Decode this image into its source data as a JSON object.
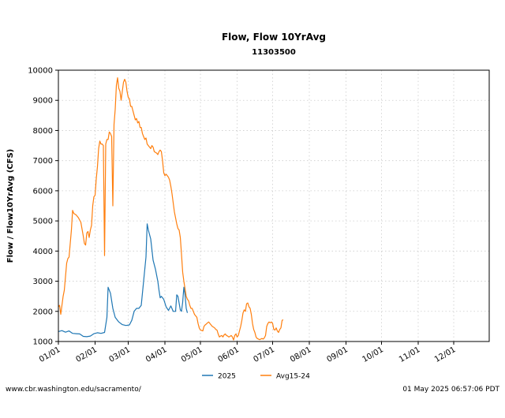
{
  "chart_data": {
    "type": "line",
    "title": "Flow, Flow 10YrAvg",
    "subtitle": "11303500",
    "ylabel": "Flow / Flow10YrAvg (CFS)",
    "xlabel": "",
    "ylim": [
      1000,
      10000
    ],
    "xlim": [
      "01/01",
      "12/31"
    ],
    "yticks": [
      1000,
      2000,
      3000,
      4000,
      5000,
      6000,
      7000,
      8000,
      9000,
      10000
    ],
    "xticks": [
      {
        "label": "01/01",
        "day": 1
      },
      {
        "label": "02/01",
        "day": 32
      },
      {
        "label": "03/01",
        "day": 60
      },
      {
        "label": "04/01",
        "day": 91
      },
      {
        "label": "05/01",
        "day": 121
      },
      {
        "label": "06/01",
        "day": 152
      },
      {
        "label": "07/01",
        "day": 182
      },
      {
        "label": "08/01",
        "day": 213
      },
      {
        "label": "09/01",
        "day": 244
      },
      {
        "label": "10/01",
        "day": 274
      },
      {
        "label": "11/01",
        "day": 305
      },
      {
        "label": "12/01",
        "day": 335
      }
    ],
    "grid": true,
    "legend_position": "bottom",
    "series": [
      {
        "name": "2025",
        "color": "#1f77b4",
        "points": [
          [
            1,
            1330
          ],
          [
            4,
            1360
          ],
          [
            7,
            1310
          ],
          [
            10,
            1350
          ],
          [
            13,
            1270
          ],
          [
            16,
            1260
          ],
          [
            19,
            1250
          ],
          [
            22,
            1170
          ],
          [
            25,
            1160
          ],
          [
            28,
            1180
          ],
          [
            31,
            1260
          ],
          [
            34,
            1290
          ],
          [
            37,
            1270
          ],
          [
            40,
            1300
          ],
          [
            42,
            1800
          ],
          [
            43,
            2800
          ],
          [
            45,
            2600
          ],
          [
            47,
            2100
          ],
          [
            49,
            1800
          ],
          [
            52,
            1650
          ],
          [
            55,
            1560
          ],
          [
            58,
            1530
          ],
          [
            61,
            1550
          ],
          [
            63,
            1700
          ],
          [
            65,
            2000
          ],
          [
            67,
            2100
          ],
          [
            69,
            2100
          ],
          [
            71,
            2200
          ],
          [
            73,
            3000
          ],
          [
            75,
            3800
          ],
          [
            76,
            4900
          ],
          [
            77,
            4700
          ],
          [
            79,
            4400
          ],
          [
            81,
            3700
          ],
          [
            83,
            3400
          ],
          [
            85,
            3000
          ],
          [
            86,
            2700
          ],
          [
            87,
            2450
          ],
          [
            88,
            2500
          ],
          [
            90,
            2400
          ],
          [
            92,
            2150
          ],
          [
            94,
            2030
          ],
          [
            96,
            2180
          ],
          [
            98,
            2000
          ],
          [
            100,
            2000
          ],
          [
            101,
            2550
          ],
          [
            102,
            2500
          ],
          [
            104,
            2050
          ],
          [
            105,
            2000
          ],
          [
            106,
            2300
          ],
          [
            107,
            2800
          ],
          [
            108,
            2550
          ],
          [
            109,
            2100
          ],
          [
            110,
            1950
          ]
        ]
      },
      {
        "name": "Avg15-24",
        "color": "#ff7f0e",
        "points": [
          [
            1,
            2150
          ],
          [
            2,
            2200
          ],
          [
            3,
            1900
          ],
          [
            5,
            2500
          ],
          [
            6,
            2700
          ],
          [
            8,
            3600
          ],
          [
            9,
            3750
          ],
          [
            10,
            3800
          ],
          [
            12,
            4700
          ],
          [
            13,
            5350
          ],
          [
            14,
            5250
          ],
          [
            16,
            5200
          ],
          [
            18,
            5100
          ],
          [
            20,
            4950
          ],
          [
            22,
            4500
          ],
          [
            23,
            4250
          ],
          [
            24,
            4200
          ],
          [
            25,
            4600
          ],
          [
            26,
            4650
          ],
          [
            27,
            4450
          ],
          [
            28,
            4700
          ],
          [
            29,
            4850
          ],
          [
            30,
            5500
          ],
          [
            31,
            5800
          ],
          [
            32,
            5850
          ],
          [
            33,
            6400
          ],
          [
            34,
            6800
          ],
          [
            35,
            7400
          ],
          [
            36,
            7650
          ],
          [
            37,
            7550
          ],
          [
            38,
            7550
          ],
          [
            39,
            7500
          ],
          [
            40,
            3850
          ],
          [
            41,
            7550
          ],
          [
            42,
            7700
          ],
          [
            43,
            7700
          ],
          [
            44,
            7950
          ],
          [
            45,
            7900
          ],
          [
            46,
            7800
          ],
          [
            47,
            5500
          ],
          [
            48,
            8200
          ],
          [
            49,
            8700
          ],
          [
            50,
            9500
          ],
          [
            51,
            9750
          ],
          [
            52,
            9400
          ],
          [
            53,
            9300
          ],
          [
            54,
            9000
          ],
          [
            55,
            9300
          ],
          [
            56,
            9600
          ],
          [
            57,
            9700
          ],
          [
            58,
            9600
          ],
          [
            59,
            9300
          ],
          [
            60,
            9100
          ],
          [
            61,
            9050
          ],
          [
            62,
            8800
          ],
          [
            63,
            8800
          ],
          [
            65,
            8500
          ],
          [
            66,
            8350
          ],
          [
            67,
            8400
          ],
          [
            68,
            8250
          ],
          [
            69,
            8300
          ],
          [
            70,
            8100
          ],
          [
            71,
            8100
          ],
          [
            72,
            7900
          ],
          [
            73,
            7800
          ],
          [
            74,
            7700
          ],
          [
            75,
            7750
          ],
          [
            76,
            7550
          ],
          [
            77,
            7500
          ],
          [
            78,
            7450
          ],
          [
            79,
            7400
          ],
          [
            80,
            7500
          ],
          [
            81,
            7450
          ],
          [
            82,
            7300
          ],
          [
            84,
            7250
          ],
          [
            85,
            7200
          ],
          [
            86,
            7300
          ],
          [
            87,
            7350
          ],
          [
            88,
            7300
          ],
          [
            89,
            7000
          ],
          [
            90,
            6600
          ],
          [
            91,
            6500
          ],
          [
            92,
            6550
          ],
          [
            93,
            6500
          ],
          [
            94,
            6450
          ],
          [
            95,
            6350
          ],
          [
            96,
            6150
          ],
          [
            97,
            5900
          ],
          [
            98,
            5600
          ],
          [
            99,
            5300
          ],
          [
            100,
            5100
          ],
          [
            101,
            4900
          ],
          [
            102,
            4750
          ],
          [
            103,
            4700
          ],
          [
            104,
            4450
          ],
          [
            105,
            3900
          ],
          [
            106,
            3300
          ],
          [
            107,
            3000
          ],
          [
            108,
            2750
          ],
          [
            109,
            2500
          ],
          [
            110,
            2400
          ],
          [
            111,
            2350
          ],
          [
            112,
            2200
          ],
          [
            113,
            2100
          ],
          [
            114,
            2100
          ],
          [
            115,
            2000
          ],
          [
            116,
            1900
          ],
          [
            117,
            1850
          ],
          [
            118,
            1800
          ],
          [
            119,
            1600
          ],
          [
            120,
            1450
          ],
          [
            121,
            1380
          ],
          [
            122,
            1370
          ],
          [
            123,
            1350
          ],
          [
            124,
            1500
          ],
          [
            125,
            1550
          ],
          [
            126,
            1580
          ],
          [
            127,
            1620
          ],
          [
            128,
            1650
          ],
          [
            129,
            1600
          ],
          [
            130,
            1550
          ],
          [
            131,
            1500
          ],
          [
            132,
            1480
          ],
          [
            133,
            1450
          ],
          [
            134,
            1400
          ],
          [
            135,
            1380
          ],
          [
            136,
            1250
          ],
          [
            137,
            1150
          ],
          [
            138,
            1180
          ],
          [
            139,
            1200
          ],
          [
            140,
            1150
          ],
          [
            141,
            1220
          ],
          [
            142,
            1250
          ],
          [
            143,
            1200
          ],
          [
            144,
            1180
          ],
          [
            145,
            1150
          ],
          [
            146,
            1170
          ],
          [
            147,
            1200
          ],
          [
            148,
            1150
          ],
          [
            149,
            1050
          ],
          [
            150,
            1200
          ],
          [
            151,
            1250
          ],
          [
            152,
            1150
          ],
          [
            153,
            1200
          ],
          [
            154,
            1350
          ],
          [
            155,
            1500
          ],
          [
            156,
            1700
          ],
          [
            157,
            1950
          ],
          [
            158,
            2050
          ],
          [
            159,
            2000
          ],
          [
            160,
            2250
          ],
          [
            161,
            2280
          ],
          [
            162,
            2150
          ],
          [
            163,
            2100
          ],
          [
            164,
            1900
          ],
          [
            165,
            1600
          ],
          [
            166,
            1400
          ],
          [
            167,
            1300
          ],
          [
            168,
            1150
          ],
          [
            169,
            1100
          ],
          [
            170,
            1080
          ],
          [
            171,
            1060
          ],
          [
            172,
            1080
          ],
          [
            173,
            1100
          ],
          [
            174,
            1080
          ],
          [
            175,
            1120
          ],
          [
            176,
            1200
          ],
          [
            177,
            1500
          ],
          [
            178,
            1600
          ],
          [
            179,
            1650
          ],
          [
            180,
            1620
          ],
          [
            181,
            1650
          ],
          [
            182,
            1600
          ],
          [
            183,
            1400
          ],
          [
            184,
            1380
          ],
          [
            185,
            1450
          ],
          [
            186,
            1350
          ],
          [
            187,
            1300
          ],
          [
            188,
            1400
          ],
          [
            189,
            1450
          ],
          [
            190,
            1700
          ],
          [
            191,
            1720
          ]
        ]
      }
    ]
  },
  "footer": {
    "source": "www.cbr.washington.edu/sacramento/",
    "timestamp": "01 May 2025 06:57:06 PDT"
  }
}
